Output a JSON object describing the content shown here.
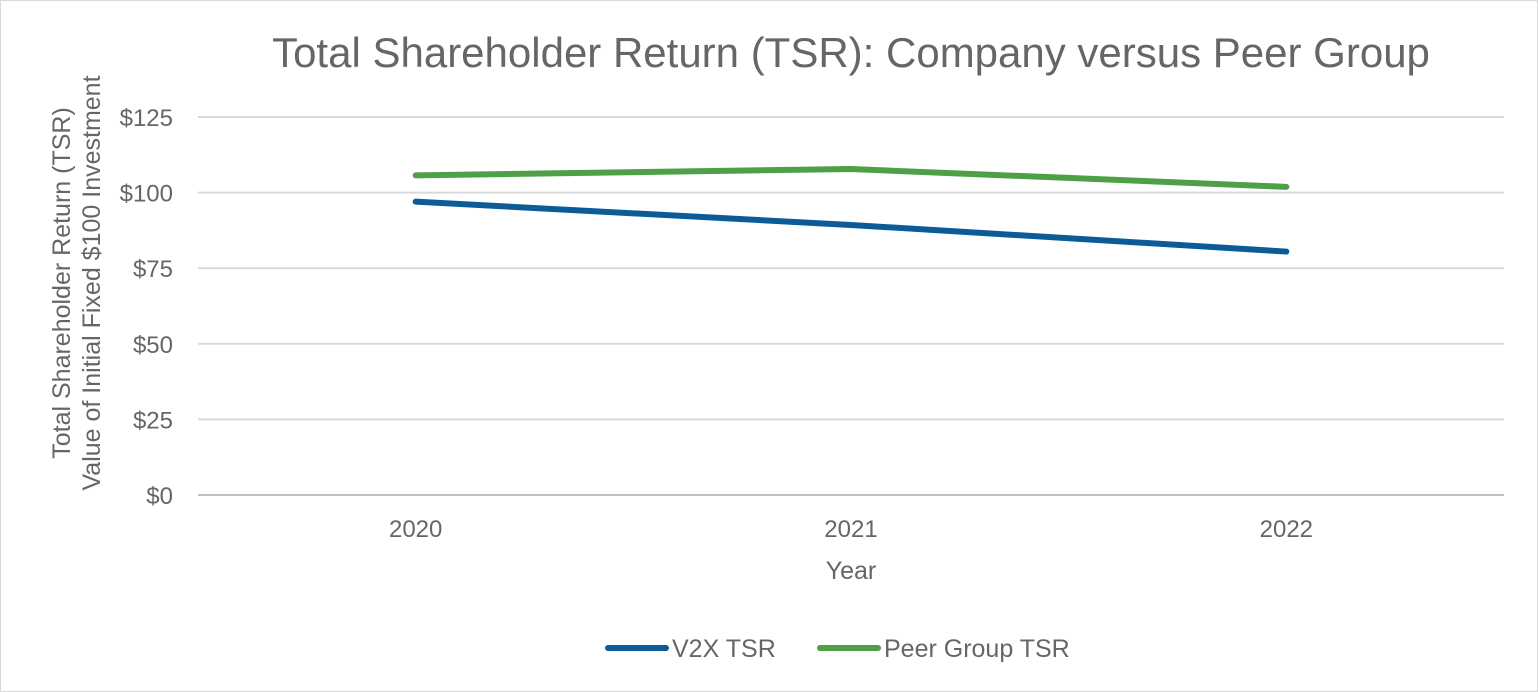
{
  "chart_data": {
    "type": "line",
    "title": "Total Shareholder Return (TSR): Company versus Peer Group",
    "xlabel": "Year",
    "ylabel_line1": "Total Shareholder Return (TSR)",
    "ylabel_line2": "Value of Initial Fixed $100 Investment",
    "categories": [
      "2020",
      "2021",
      "2022"
    ],
    "ylim": [
      0,
      125
    ],
    "yticks": [
      0,
      25,
      50,
      75,
      100,
      125
    ],
    "ytick_labels": [
      "$0",
      "$25",
      "$50",
      "$75",
      "$100",
      "$125"
    ],
    "grid": true,
    "legend_position": "bottom",
    "series": [
      {
        "name": "V2X TSR",
        "color": "#0b5c96",
        "values": [
          97,
          89.3,
          80.5
        ]
      },
      {
        "name": "Peer Group TSR",
        "color": "#4ea046",
        "values": [
          105.7,
          107.8,
          101.9
        ]
      }
    ]
  }
}
